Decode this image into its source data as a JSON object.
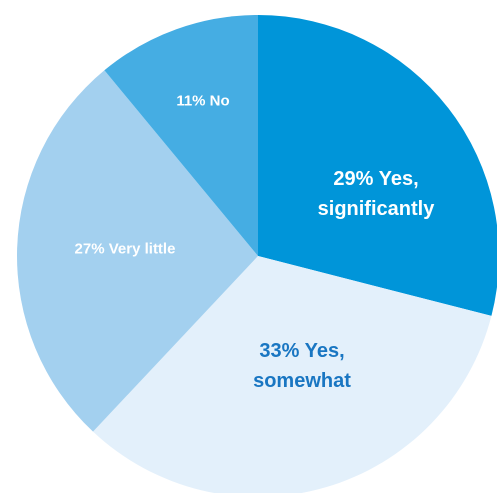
{
  "chart_data": {
    "type": "pie",
    "title": "",
    "start_angle_deg": 0,
    "direction": "clockwise",
    "slices": [
      {
        "label": "Yes, significantly",
        "value": 29,
        "display_lines": [
          "29% Yes,",
          "significantly"
        ],
        "color": "#0095d9",
        "text_color": "#ffffff"
      },
      {
        "label": "Yes, somewhat",
        "value": 33,
        "display_lines": [
          "33% Yes,",
          "somewhat"
        ],
        "color": "#e3f0fb",
        "text_color": "#1976c2"
      },
      {
        "label": "Very little",
        "value": 27,
        "display_lines": [
          "27% Very little"
        ],
        "color": "#a3d0ef",
        "text_color": "#ffffff"
      },
      {
        "label": "No",
        "value": 11,
        "display_lines": [
          "11% No"
        ],
        "color": "#45ade3",
        "text_color": "#ffffff"
      }
    ]
  }
}
